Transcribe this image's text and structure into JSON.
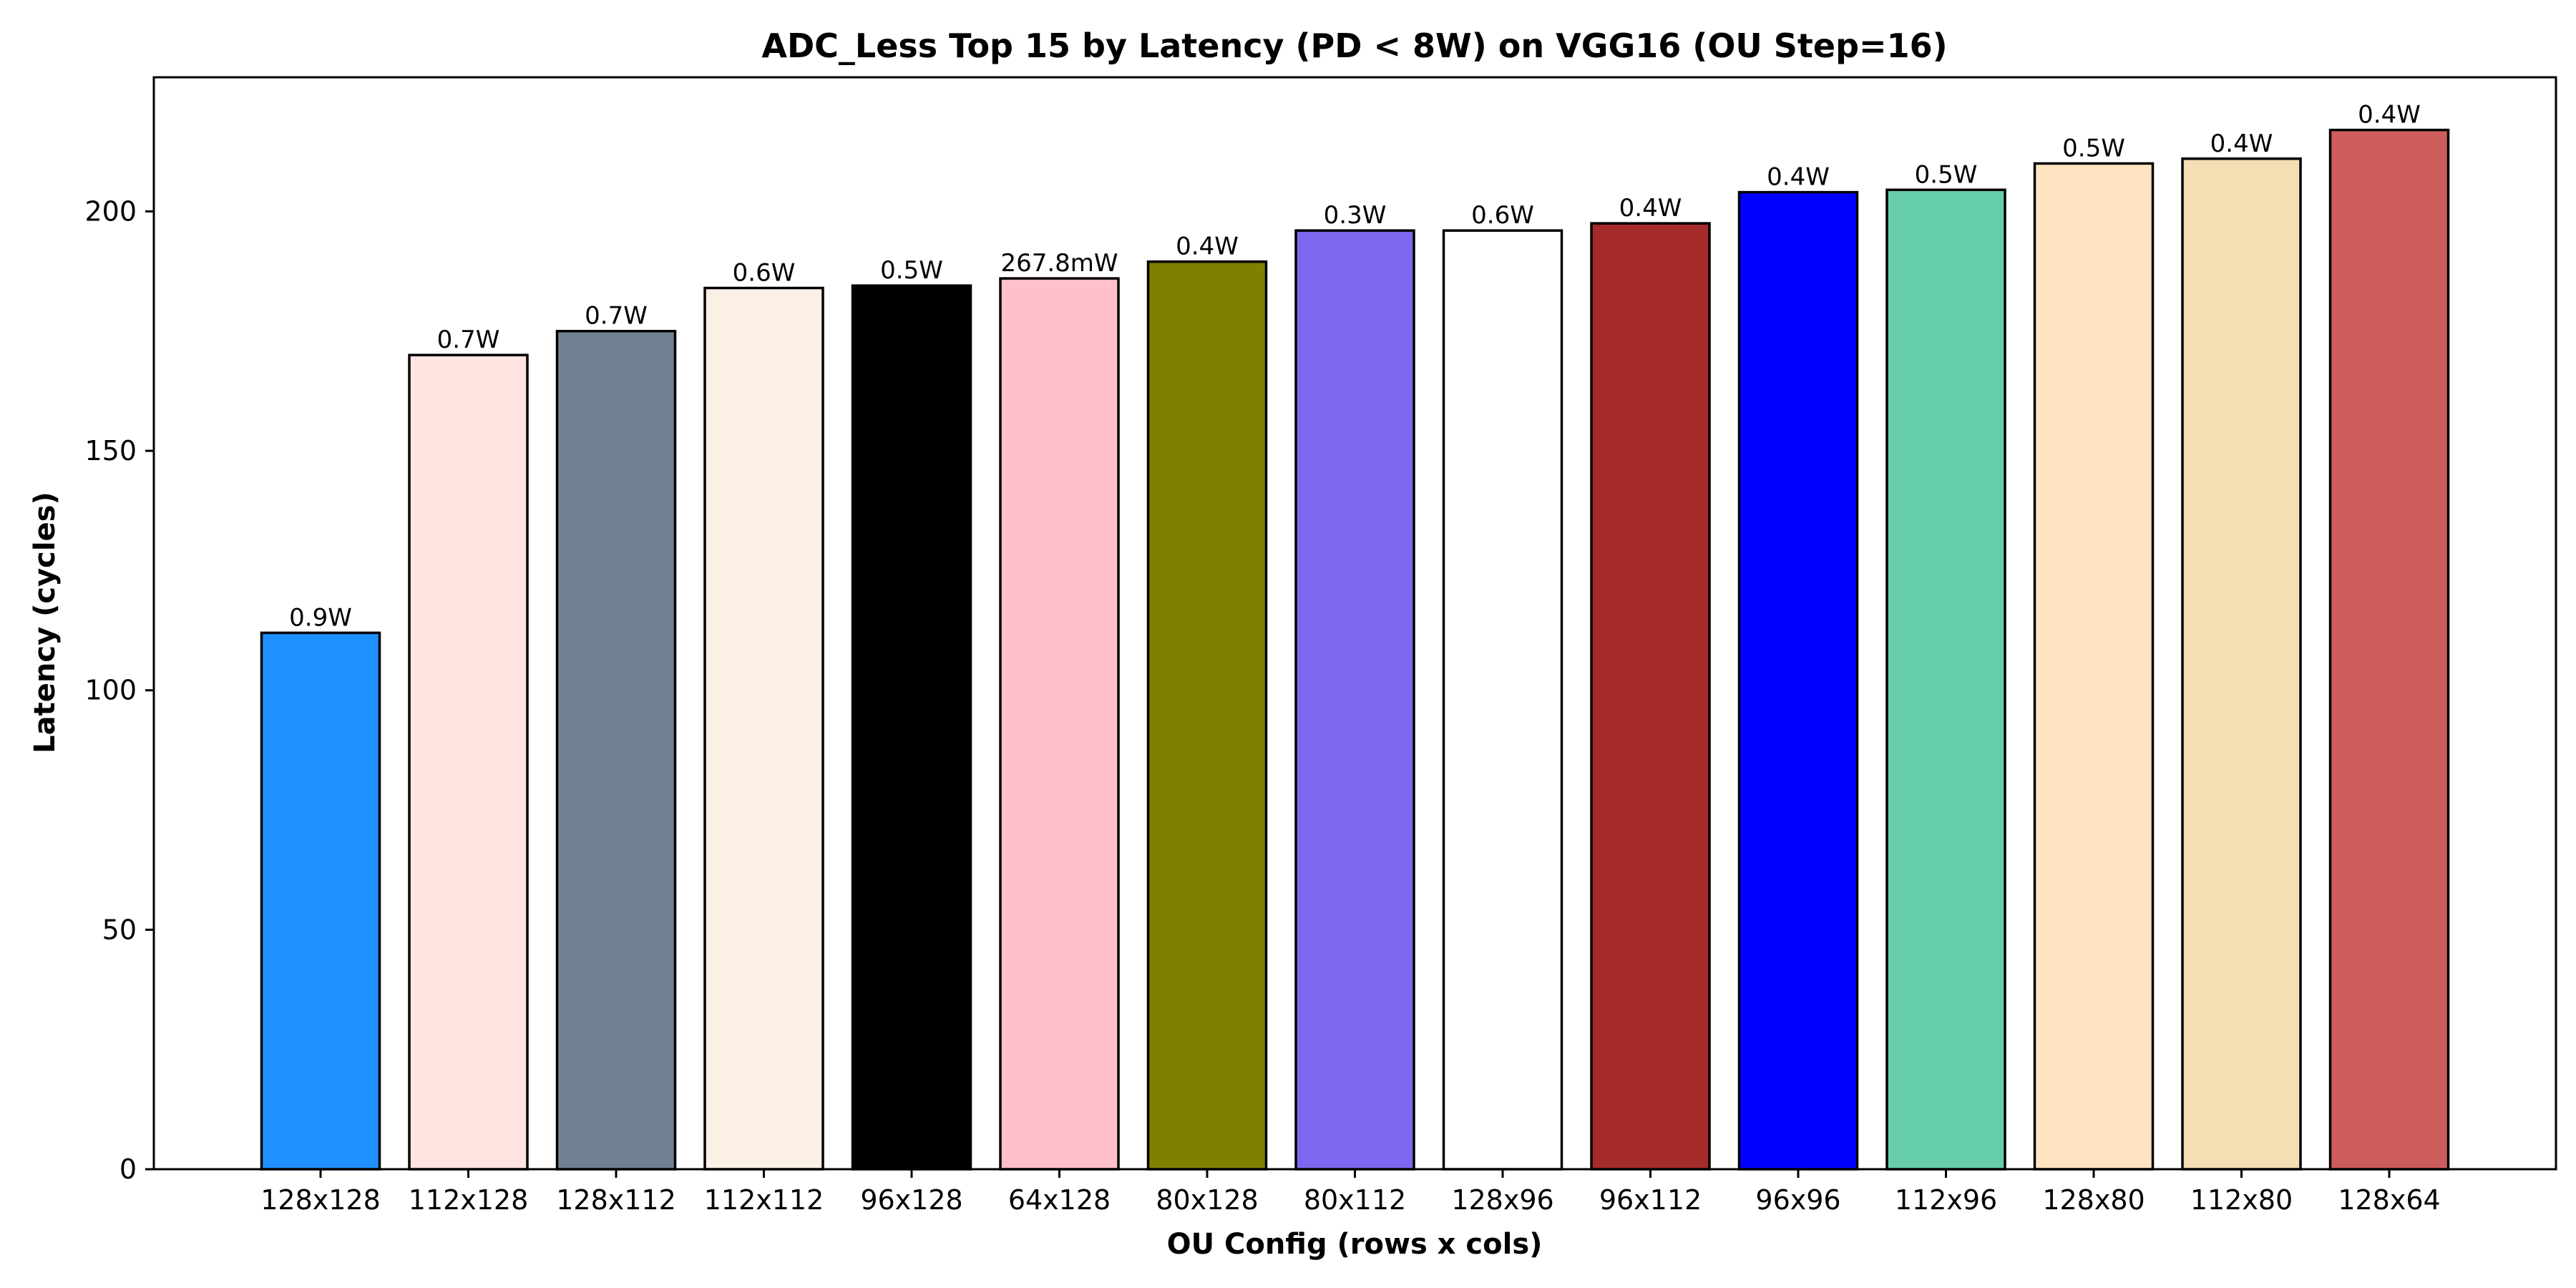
{
  "chart_data": {
    "type": "bar",
    "title": "ADC_Less Top 15 by Latency (PD < 8W) on VGG16 (OU Step=16)",
    "xlabel": "OU Config (rows x cols)",
    "ylabel": "Latency (cycles)",
    "ylim": [
      0,
      228
    ],
    "yticks": [
      0,
      50,
      100,
      150,
      200
    ],
    "grid": false,
    "legend": "none",
    "categories": [
      "128x128",
      "112x128",
      "128x112",
      "112x112",
      "96x128",
      "64x128",
      "80x128",
      "80x112",
      "128x96",
      "96x112",
      "96x96",
      "112x96",
      "128x80",
      "112x80",
      "128x64"
    ],
    "values": [
      112,
      170,
      175,
      184,
      184.5,
      186,
      189.5,
      196,
      196,
      197.5,
      204,
      204.5,
      210,
      211,
      217
    ],
    "data_labels": [
      "0.9W",
      "0.7W",
      "0.7W",
      "0.6W",
      "0.5W",
      "267.8mW",
      "0.4W",
      "0.3W",
      "0.6W",
      "0.4W",
      "0.4W",
      "0.5W",
      "0.5W",
      "0.4W",
      "0.4W"
    ],
    "colors": [
      "#1e90ff",
      "#ffe4e1",
      "#708090",
      "#faf0e6",
      "#000000",
      "#ffc0cb",
      "#808000",
      "#7b68ee",
      "#ffffff",
      "#a52a2a",
      "#0000ff",
      "#66cdaa",
      "#ffe4c4",
      "#f5deb3",
      "#cd5c5c"
    ]
  }
}
